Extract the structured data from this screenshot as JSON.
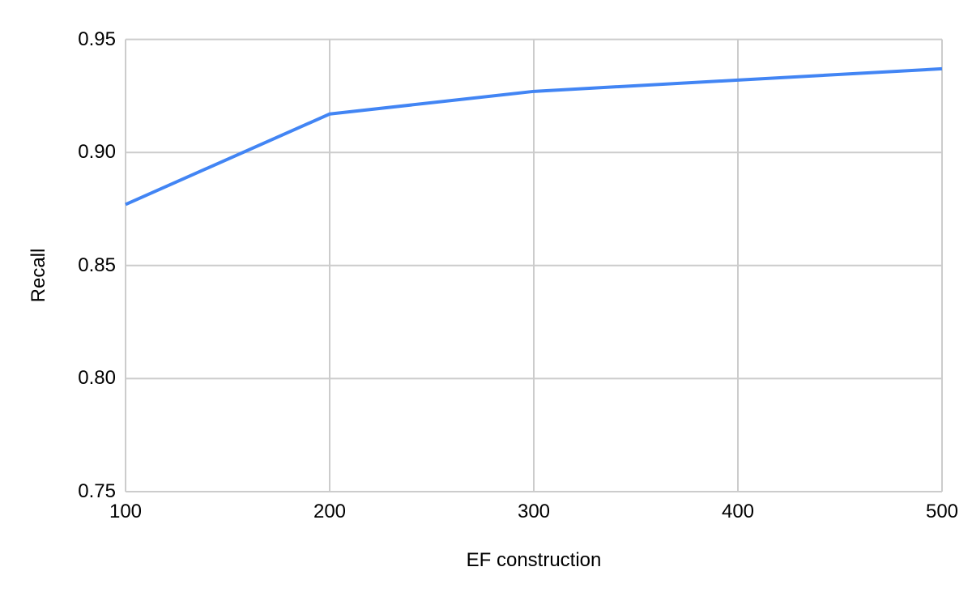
{
  "chart_data": {
    "type": "line",
    "title": "",
    "xlabel": "EF construction",
    "ylabel": "Recall",
    "x": [
      100,
      200,
      300,
      400,
      500
    ],
    "series": [
      {
        "name": "Recall",
        "color": "#4285f4",
        "values": [
          0.877,
          0.917,
          0.927,
          0.932,
          0.937
        ]
      }
    ],
    "xlim": [
      100,
      500
    ],
    "ylim": [
      0.75,
      0.95
    ],
    "x_ticks": [
      100,
      200,
      300,
      400,
      500
    ],
    "x_tick_labels": [
      "100",
      "200",
      "300",
      "400",
      "500"
    ],
    "y_ticks": [
      0.75,
      0.8,
      0.85,
      0.9,
      0.95
    ],
    "y_tick_labels": [
      "0.75",
      "0.80",
      "0.85",
      "0.90",
      "0.95"
    ],
    "grid": true,
    "legend": "none",
    "line_width": 4,
    "colors": {
      "line": "#4285f4",
      "gridline": "#cccccc",
      "tick_label": "#000000",
      "axis_title": "#000000",
      "background": "#ffffff"
    }
  }
}
